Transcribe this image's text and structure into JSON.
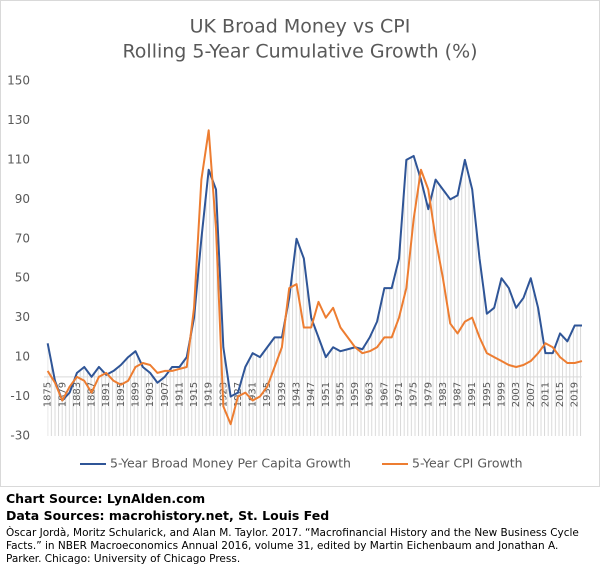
{
  "chart_data": {
    "type": "line",
    "title": "UK Broad Money vs CPI",
    "subtitle": "Rolling 5-Year Cumulative Growth (%)",
    "x": [
      1875,
      1877,
      1879,
      1881,
      1883,
      1885,
      1887,
      1889,
      1891,
      1893,
      1895,
      1897,
      1899,
      1901,
      1903,
      1905,
      1907,
      1909,
      1911,
      1913,
      1915,
      1917,
      1919,
      1921,
      1923,
      1925,
      1927,
      1929,
      1931,
      1933,
      1935,
      1937,
      1939,
      1941,
      1943,
      1945,
      1947,
      1949,
      1951,
      1953,
      1955,
      1957,
      1959,
      1961,
      1963,
      1965,
      1967,
      1969,
      1971,
      1973,
      1975,
      1977,
      1979,
      1981,
      1983,
      1985,
      1987,
      1989,
      1991,
      1993,
      1995,
      1997,
      1999,
      2001,
      2003,
      2005,
      2007,
      2009,
      2011,
      2013,
      2015,
      2017,
      2019,
      2021
    ],
    "series": [
      {
        "name": "5-Year Broad Money Per Capita Growth",
        "color": "#2f5597",
        "values": [
          17,
          -2,
          -12,
          -8,
          2,
          5,
          0,
          5,
          1,
          3,
          6,
          10,
          13,
          5,
          2,
          -3,
          0,
          5,
          5,
          10,
          30,
          70,
          105,
          95,
          15,
          -10,
          -8,
          5,
          12,
          10,
          15,
          20,
          20,
          40,
          70,
          60,
          30,
          20,
          10,
          15,
          13,
          14,
          15,
          14,
          20,
          28,
          45,
          45,
          60,
          110,
          112,
          100,
          85,
          100,
          95,
          90,
          92,
          110,
          95,
          60,
          32,
          35,
          50,
          45,
          35,
          40,
          50,
          35,
          12,
          12,
          22,
          18,
          26,
          26
        ]
      },
      {
        "name": "5-Year CPI Growth",
        "color": "#ed7d31",
        "values": [
          3,
          -3,
          -12,
          -5,
          0,
          -2,
          -8,
          0,
          2,
          -2,
          -4,
          -2,
          5,
          7,
          6,
          2,
          3,
          3,
          4,
          5,
          35,
          100,
          125,
          75,
          -15,
          -24,
          -10,
          -8,
          -12,
          -10,
          -5,
          5,
          15,
          45,
          47,
          25,
          25,
          38,
          30,
          35,
          25,
          20,
          15,
          12,
          13,
          15,
          20,
          20,
          30,
          45,
          80,
          105,
          95,
          70,
          50,
          27,
          22,
          28,
          30,
          20,
          12,
          10,
          8,
          6,
          5,
          6,
          8,
          12,
          17,
          15,
          10,
          7,
          7,
          8
        ]
      }
    ],
    "xlim": [
      1874,
      2021
    ],
    "xticks": [
      1875,
      1879,
      1883,
      1887,
      1891,
      1895,
      1899,
      1903,
      1907,
      1911,
      1915,
      1919,
      1923,
      1927,
      1931,
      1935,
      1939,
      1943,
      1947,
      1951,
      1955,
      1959,
      1963,
      1967,
      1971,
      1975,
      1979,
      1983,
      1987,
      1991,
      1995,
      1999,
      2003,
      2007,
      2011,
      2015,
      2019
    ],
    "ylim": [
      -30,
      150
    ],
    "yticks": [
      -30,
      -10,
      10,
      30,
      50,
      70,
      90,
      110,
      130,
      150
    ],
    "legend": "bottom",
    "source": "Chart Source: LynAlden.com",
    "data_sources": "Data Sources: macrohistory.net, St. Louis Fed",
    "citation": "Òscar Jordà, Moritz Schularick, and Alan M. Taylor. 2017. “Macrofinancial History and the New Business Cycle Facts.” in NBER Macroeconomics Annual 2016, volume 31, edited by Martin Eichenbaum and Jonathan A. Parker. Chicago: University of Chicago Press."
  }
}
